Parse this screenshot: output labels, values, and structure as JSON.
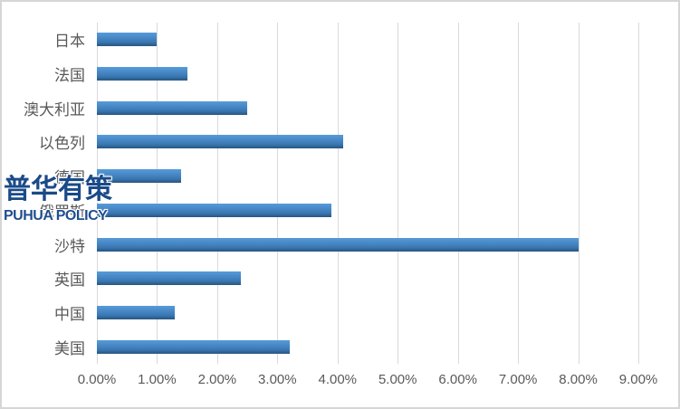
{
  "chart_data": {
    "type": "bar",
    "orientation": "horizontal",
    "title": "",
    "xlabel": "",
    "ylabel": "",
    "categories": [
      "日本",
      "法国",
      "澳大利亚",
      "以色列",
      "德国",
      "俄罗斯",
      "沙特",
      "英国",
      "中国",
      "美国"
    ],
    "values": [
      1.0,
      1.5,
      2.5,
      4.1,
      1.4,
      3.9,
      8.0,
      2.4,
      1.3,
      3.2
    ],
    "value_unit": "%",
    "x_ticks": [
      "0.00%",
      "1.00%",
      "2.00%",
      "3.00%",
      "4.00%",
      "5.00%",
      "6.00%",
      "7.00%",
      "8.00%",
      "9.00%"
    ],
    "xlim": [
      0,
      9
    ],
    "grid": "vertical-only",
    "legend": "none"
  },
  "watermark": {
    "line1": "普华有策",
    "line2": "PUHUA POLICY"
  },
  "colors": {
    "bar_gradient_top": "#579BD7",
    "bar_gradient_bottom": "#27567F",
    "gridline": "#D9D9D9",
    "axis_text": "#595959",
    "watermark_cn": "#1A4A88",
    "watermark_en": "#1F4E8F",
    "frame_border": "#D6D6D6",
    "background": "#FFFFFF"
  }
}
